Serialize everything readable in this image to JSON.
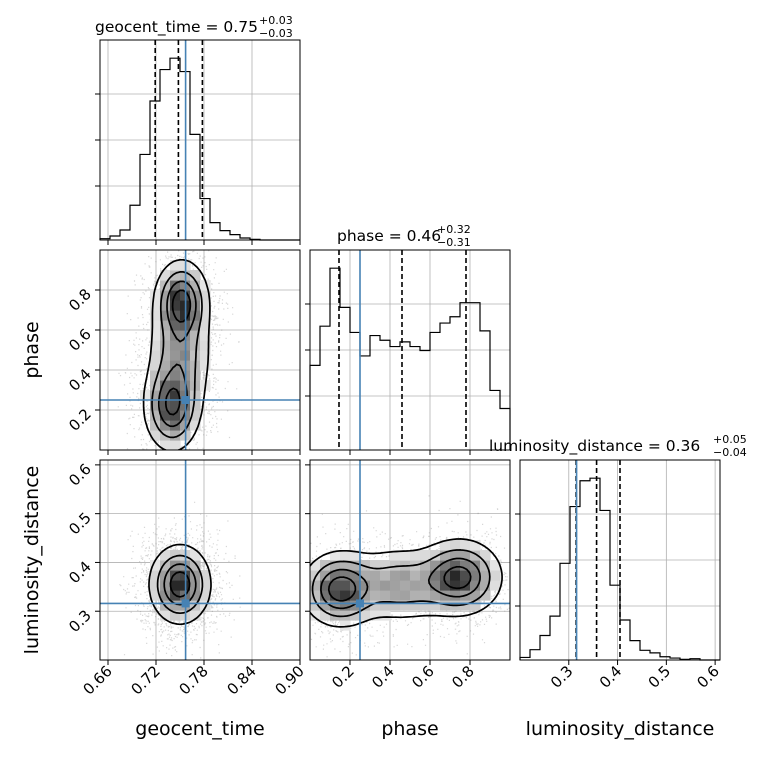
{
  "chart_data": {
    "type": "corner",
    "parameters": [
      "geocent_time",
      "phase",
      "luminosity_distance"
    ],
    "colors": {
      "truth": "#4682b4",
      "hist": "#000000",
      "density": "#000000"
    },
    "grid": true,
    "panels": {
      "geocent_time": {
        "title": {
          "text": "geocent_time = 0.75",
          "sup": "+0.03",
          "sub": "−0.03"
        },
        "xlim": [
          0.65,
          0.9
        ],
        "xticks": [
          0.66,
          0.72,
          0.78,
          0.84,
          0.9
        ],
        "xtick_labels": [
          "0.66",
          "0.72",
          "0.78",
          "0.84",
          "0.90"
        ],
        "quantiles": [
          0.719,
          0.748,
          0.778
        ],
        "truth": 0.757,
        "hist": {
          "edges_start": 0.65,
          "bin_width": 0.0125,
          "counts": [
            2,
            6,
            15,
            52,
            128,
            208,
            255,
            272,
            252,
            158,
            62,
            26,
            14,
            8,
            3,
            1,
            0,
            0,
            0,
            0
          ]
        }
      },
      "phase": {
        "title": {
          "text": "phase = 0.46",
          "sup": "+0.32",
          "sub": "−0.31"
        },
        "xlim": [
          0.0,
          1.0
        ],
        "xticks": [
          0.2,
          0.4,
          0.6,
          0.8
        ],
        "xtick_labels": [
          "0.2",
          "0.4",
          "0.6",
          "0.8"
        ],
        "yticks": [
          0.2,
          0.4,
          0.6,
          0.8
        ],
        "ytick_labels": [
          "0.2",
          "0.4",
          "0.6",
          "0.8"
        ],
        "quantiles": [
          0.145,
          0.46,
          0.78
        ],
        "truth": 0.25,
        "hist": {
          "edges_start": 0.0,
          "bin_width": 0.05,
          "counts": [
            108,
            158,
            232,
            182,
            150,
            120,
            146,
            140,
            132,
            138,
            132,
            127,
            150,
            162,
            170,
            188,
            188,
            152,
            76,
            53
          ]
        }
      },
      "luminosity_distance": {
        "title": {
          "text": "luminosity_distance = 0.36",
          "sup": "+0.05",
          "sub": "−0.04"
        },
        "xlim": [
          0.2,
          0.61
        ],
        "xticks": [
          0.3,
          0.4,
          0.5,
          0.6
        ],
        "xtick_labels": [
          "0.3",
          "0.4",
          "0.5",
          "0.6"
        ],
        "yticks": [
          0.3,
          0.4,
          0.5,
          0.6
        ],
        "ytick_labels": [
          "0.3",
          "0.4",
          "0.5",
          "0.6"
        ],
        "quantiles": [
          0.315,
          0.357,
          0.405
        ],
        "truth": 0.316,
        "hist": {
          "edges_start": 0.2,
          "bin_width": 0.0205,
          "counts": [
            4,
            16,
            38,
            68,
            150,
            238,
            278,
            282,
            232,
            116,
            62,
            30,
            15,
            11,
            5,
            3,
            1,
            2,
            0,
            0
          ]
        }
      }
    },
    "density_blobs": {
      "phase_vs_geocent_time": [
        {
          "cx": 0.752,
          "cy": 0.74,
          "sx": 0.016,
          "sy": 0.1,
          "w": 1.0
        },
        {
          "cx": 0.74,
          "cy": 0.22,
          "sx": 0.017,
          "sy": 0.11,
          "w": 0.9
        },
        {
          "cx": 0.75,
          "cy": 0.48,
          "sx": 0.02,
          "sy": 0.15,
          "w": 0.5
        }
      ],
      "luminosity_distance_vs_geocent_time": [
        {
          "cx": 0.75,
          "cy": 0.355,
          "sx": 0.018,
          "sy": 0.038,
          "w": 1.0
        }
      ],
      "luminosity_distance_vs_phase": [
        {
          "cx": 0.15,
          "cy": 0.345,
          "sx": 0.09,
          "sy": 0.036,
          "w": 1.0
        },
        {
          "cx": 0.75,
          "cy": 0.37,
          "sx": 0.1,
          "sy": 0.037,
          "w": 0.95
        },
        {
          "cx": 0.45,
          "cy": 0.355,
          "sx": 0.15,
          "sy": 0.038,
          "w": 0.5
        }
      ]
    }
  }
}
